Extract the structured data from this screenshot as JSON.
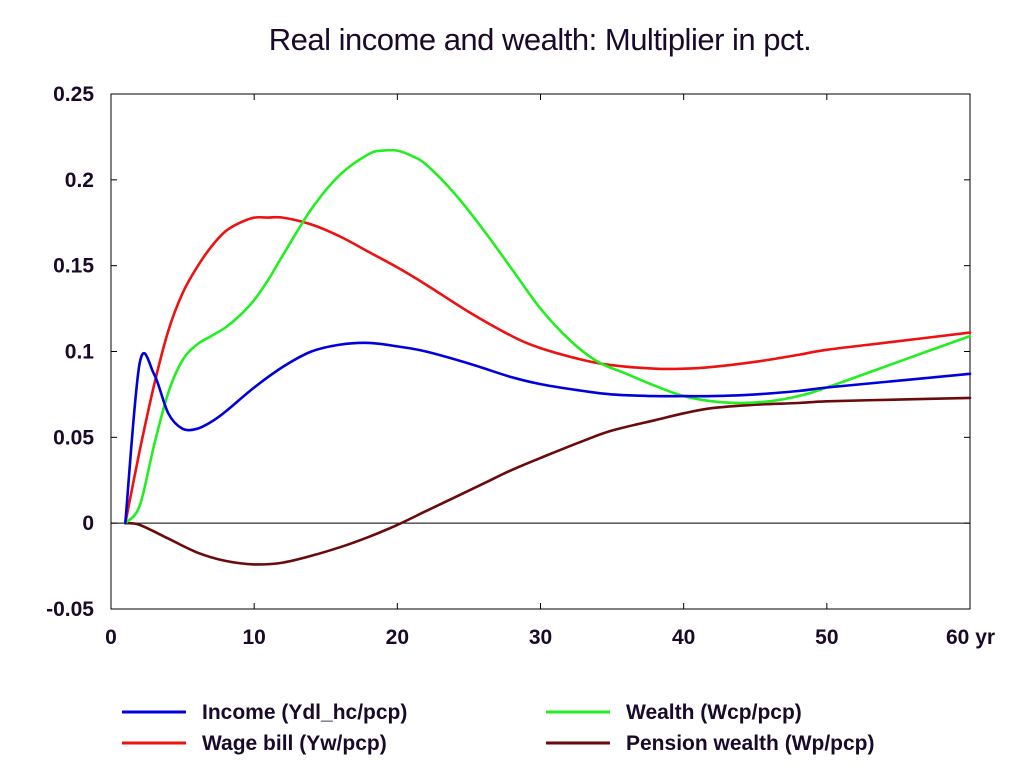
{
  "chart_data": {
    "type": "line",
    "title": "Real income and wealth: Multiplier in pct.",
    "xlabel": "",
    "ylabel": "",
    "xlim": [
      0,
      60
    ],
    "ylim": [
      -0.05,
      0.25
    ],
    "x_ticks": [
      0,
      10,
      20,
      30,
      40,
      50,
      60
    ],
    "x_tick_labels": [
      "0",
      "10",
      "20",
      "30",
      "40",
      "50",
      "60 yr"
    ],
    "y_ticks": [
      -0.05,
      0,
      0.05,
      0.1,
      0.15,
      0.2,
      0.25
    ],
    "y_tick_labels": [
      "-0.05",
      "0",
      "0.05",
      "0.1",
      "0.15",
      "0.2",
      "0.25"
    ],
    "grid": false,
    "zero_line": true,
    "legend_position": "bottom",
    "series": [
      {
        "name": "Income (Ydl_hc/pcp)",
        "color": "#0000dd",
        "x": [
          1,
          2,
          3,
          4,
          5,
          6,
          7,
          8,
          10,
          12,
          14,
          16,
          18,
          20,
          22,
          25,
          28,
          30,
          33,
          35,
          38,
          40,
          42,
          45,
          48,
          50,
          55,
          60
        ],
        "y": [
          0,
          0.093,
          0.087,
          0.064,
          0.055,
          0.055,
          0.059,
          0.065,
          0.079,
          0.091,
          0.1,
          0.104,
          0.105,
          0.103,
          0.1,
          0.093,
          0.085,
          0.081,
          0.077,
          0.075,
          0.074,
          0.074,
          0.074,
          0.075,
          0.077,
          0.079,
          0.083,
          0.087
        ]
      },
      {
        "name": "Wage bill (Yw/pcp)",
        "color": "#ee1111",
        "x": [
          1,
          2,
          3,
          4,
          5,
          6,
          7,
          8,
          9,
          10,
          11,
          12,
          14,
          16,
          18,
          20,
          22,
          25,
          28,
          30,
          33,
          35,
          38,
          40,
          42,
          45,
          48,
          50,
          55,
          60
        ],
        "y": [
          0,
          0.042,
          0.08,
          0.112,
          0.134,
          0.149,
          0.161,
          0.17,
          0.175,
          0.178,
          0.178,
          0.178,
          0.174,
          0.167,
          0.158,
          0.149,
          0.139,
          0.123,
          0.109,
          0.102,
          0.095,
          0.092,
          0.09,
          0.09,
          0.091,
          0.094,
          0.098,
          0.101,
          0.106,
          0.111
        ]
      },
      {
        "name": "Wealth (Wcp/pcp)",
        "color": "#22ee22",
        "x": [
          1,
          2,
          3,
          4,
          5,
          6,
          7,
          8,
          9,
          10,
          11,
          12,
          14,
          16,
          18,
          19,
          20,
          21,
          22,
          24,
          26,
          28,
          30,
          32,
          34,
          36,
          38,
          40,
          42,
          44,
          46,
          48,
          50,
          55,
          60
        ],
        "y": [
          0,
          0.01,
          0.045,
          0.076,
          0.095,
          0.104,
          0.109,
          0.114,
          0.121,
          0.13,
          0.142,
          0.156,
          0.183,
          0.203,
          0.215,
          0.217,
          0.217,
          0.214,
          0.209,
          0.192,
          0.171,
          0.148,
          0.125,
          0.107,
          0.094,
          0.087,
          0.08,
          0.074,
          0.071,
          0.07,
          0.071,
          0.074,
          0.079,
          0.094,
          0.109
        ]
      },
      {
        "name": "Pension wealth (Wp/pcp)",
        "color": "#6a0a0a",
        "x": [
          1,
          2,
          4,
          6,
          8,
          10,
          12,
          14,
          16,
          18,
          20,
          22,
          24,
          26,
          28,
          30,
          33,
          35,
          38,
          40,
          42,
          45,
          48,
          50,
          55,
          60
        ],
        "y": [
          0,
          -0.001,
          -0.009,
          -0.017,
          -0.022,
          -0.024,
          -0.023,
          -0.019,
          -0.014,
          -0.008,
          -0.001,
          0.007,
          0.015,
          0.023,
          0.031,
          0.038,
          0.048,
          0.054,
          0.06,
          0.064,
          0.067,
          0.069,
          0.07,
          0.071,
          0.072,
          0.073
        ]
      }
    ]
  }
}
